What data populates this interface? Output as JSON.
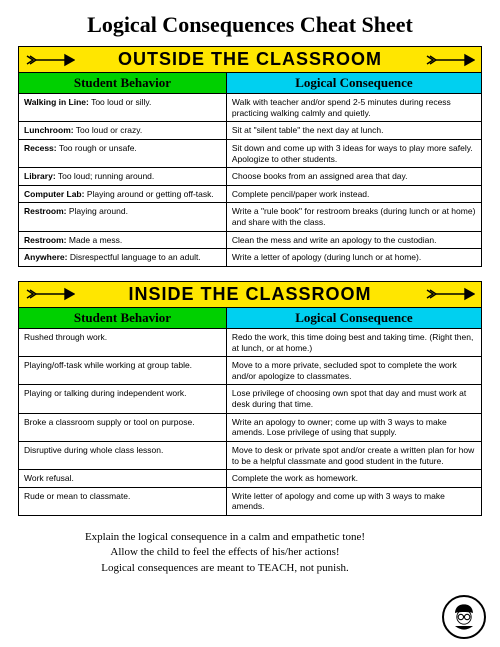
{
  "title": "Logical Consequences Cheat Sheet",
  "section1": {
    "banner": "OUTSIDE THE CLASSROOM",
    "col1": "Student Behavior",
    "col2": "Logical Consequence",
    "rows": [
      {
        "label": "Walking in Line:",
        "behavior": " Too loud or silly.",
        "consequence": "Walk with teacher and/or spend 2-5 minutes during recess practicing walking calmly and quietly."
      },
      {
        "label": "Lunchroom:",
        "behavior": " Too loud or crazy.",
        "consequence": "Sit at \"silent table\" the next day at lunch."
      },
      {
        "label": "Recess:",
        "behavior": " Too rough or unsafe.",
        "consequence": "Sit down and come up with 3 ideas for ways to play more safely.  Apologize to other students."
      },
      {
        "label": "Library:",
        "behavior": " Too loud; running around.",
        "consequence": "Choose books from an assigned area that day."
      },
      {
        "label": "Computer Lab:",
        "behavior": " Playing around or getting off-task.",
        "consequence": "Complete pencil/paper work instead."
      },
      {
        "label": "Restroom:",
        "behavior": " Playing around.",
        "consequence": "Write a \"rule book\" for restroom breaks (during lunch or at home) and share with the class."
      },
      {
        "label": "Restroom:",
        "behavior": " Made a mess.",
        "consequence": "Clean the mess and write an apology to the custodian."
      },
      {
        "label": "Anywhere:",
        "behavior": " Disrespectful language to an adult.",
        "consequence": "Write a letter of apology (during lunch or at home)."
      }
    ]
  },
  "section2": {
    "banner": "INSIDE THE CLASSROOM",
    "col1": "Student Behavior",
    "col2": "Logical Consequence",
    "rows": [
      {
        "behavior": "Rushed through work.",
        "consequence": "Redo the work, this time doing best and taking time. (Right then, at lunch, or at home.)"
      },
      {
        "behavior": "Playing/off-task while working at group table.",
        "consequence": "Move to a more private, secluded spot to complete the work and/or apologize to classmates."
      },
      {
        "behavior": "Playing or talking during independent work.",
        "consequence": "Lose privilege of choosing own spot that day and must work at desk during that time."
      },
      {
        "behavior": "Broke a classroom supply or tool on purpose.",
        "consequence": "Write an apology to owner; come up with 3 ways to make amends.  Lose privilege of using that supply."
      },
      {
        "behavior": "Disruptive during whole class lesson.",
        "consequence": "Move to desk or private spot and/or create a written plan for how to be a helpful classmate and good student in the future."
      },
      {
        "behavior": "Work refusal.",
        "consequence": "Complete the work as homework."
      },
      {
        "behavior": "Rude or mean to classmate.",
        "consequence": "Write letter of apology and come up with 3 ways to make amends."
      }
    ]
  },
  "footer": {
    "line1": "Explain the logical consequence in a calm and empathetic tone!",
    "line2": "Allow the child to feel the effects of his/her actions!",
    "line3": "Logical consequences are meant to TEACH, not punish."
  }
}
